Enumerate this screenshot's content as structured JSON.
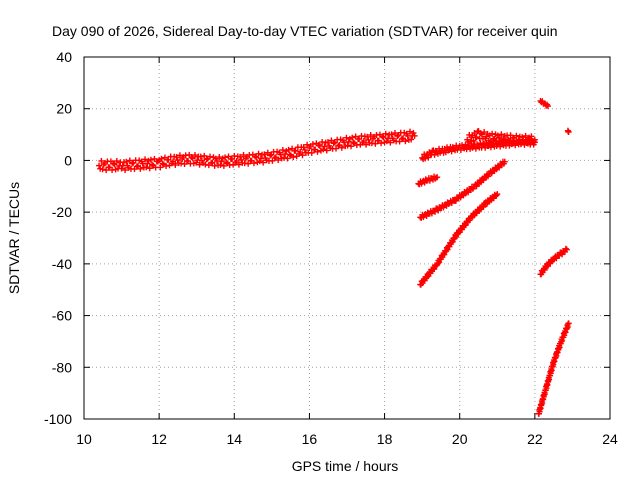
{
  "chart_data": {
    "type": "scatter",
    "title": "Day 090 of 2026, Sidereal Day-to-day VTEC variation (SDTVAR) for receiver quin",
    "xlabel": "GPS time / hours",
    "ylabel": "SDTVAR / TECUs",
    "xlim": [
      10,
      24
    ],
    "ylim": [
      -100,
      40
    ],
    "xticks": [
      10,
      12,
      14,
      16,
      18,
      20,
      22,
      24
    ],
    "yticks": [
      -100,
      -80,
      -60,
      -40,
      -20,
      0,
      20,
      40
    ],
    "grid": true,
    "legend": "none",
    "marker": "plus",
    "color": "#ff0000",
    "series": [
      {
        "segments": [
          {
            "x": [
              10.4,
              11.0,
              11.5,
              12.0,
              12.4,
              12.8,
              13.2,
              13.6,
              14.0,
              14.4,
              14.8,
              15.2,
              15.6,
              16.0,
              16.4,
              16.8,
              17.2,
              17.6,
              18.0,
              18.4,
              18.8
            ],
            "y": [
              -2,
              -2,
              -1.5,
              -1,
              0,
              0.5,
              0,
              -0.5,
              0,
              0.5,
              1,
              2,
              3,
              4.5,
              5.5,
              6.5,
              7.5,
              8,
              8.5,
              9,
              9.5
            ],
            "spread": 1.8
          },
          {
            "x": [
              19.0,
              19.3,
              19.6,
              20.0,
              20.4,
              20.8,
              21.2,
              21.6,
              22.0
            ],
            "y": [
              1,
              3,
              4,
              5,
              5.5,
              6,
              6.5,
              7,
              7
            ],
            "spread": 1.0
          },
          {
            "x": [
              20.2,
              20.5,
              20.8,
              21.2,
              21.6,
              22.0
            ],
            "y": [
              8,
              10,
              9,
              8.5,
              8,
              8
            ],
            "spread": 1.5
          },
          {
            "x": [
              18.9,
              19.15,
              19.4
            ],
            "y": [
              -9,
              -7.5,
              -6.5
            ],
            "spread": 0.6
          },
          {
            "x": [
              18.95,
              19.4,
              19.9,
              20.4,
              20.8,
              21.2
            ],
            "y": [
              -22,
              -19,
              -15,
              -10,
              -5,
              -0.5
            ],
            "spread": 0.6
          },
          {
            "x": [
              18.95,
              19.4,
              19.9,
              20.3,
              20.7,
              21.0
            ],
            "y": [
              -48,
              -40,
              -29,
              -22,
              -16.5,
              -13
            ],
            "spread": 0.6
          },
          {
            "x": [
              22.15,
              22.3,
              22.5,
              22.7,
              22.85
            ],
            "y": [
              -44,
              -41,
              -38,
              -36,
              -34.5
            ],
            "spread": 0.6
          },
          {
            "x": [
              22.1,
              22.3,
              22.5,
              22.7,
              22.9
            ],
            "y": [
              -98,
              -88,
              -78,
              -70,
              -63
            ],
            "spread": 0.6
          },
          {
            "x": [
              22.15,
              22.25,
              22.35
            ],
            "y": [
              23,
              22,
              21
            ],
            "spread": 0.4
          },
          {
            "x": [
              22.88,
              22.9
            ],
            "y": [
              11.5,
              11
            ],
            "spread": 0.2
          }
        ]
      }
    ]
  }
}
